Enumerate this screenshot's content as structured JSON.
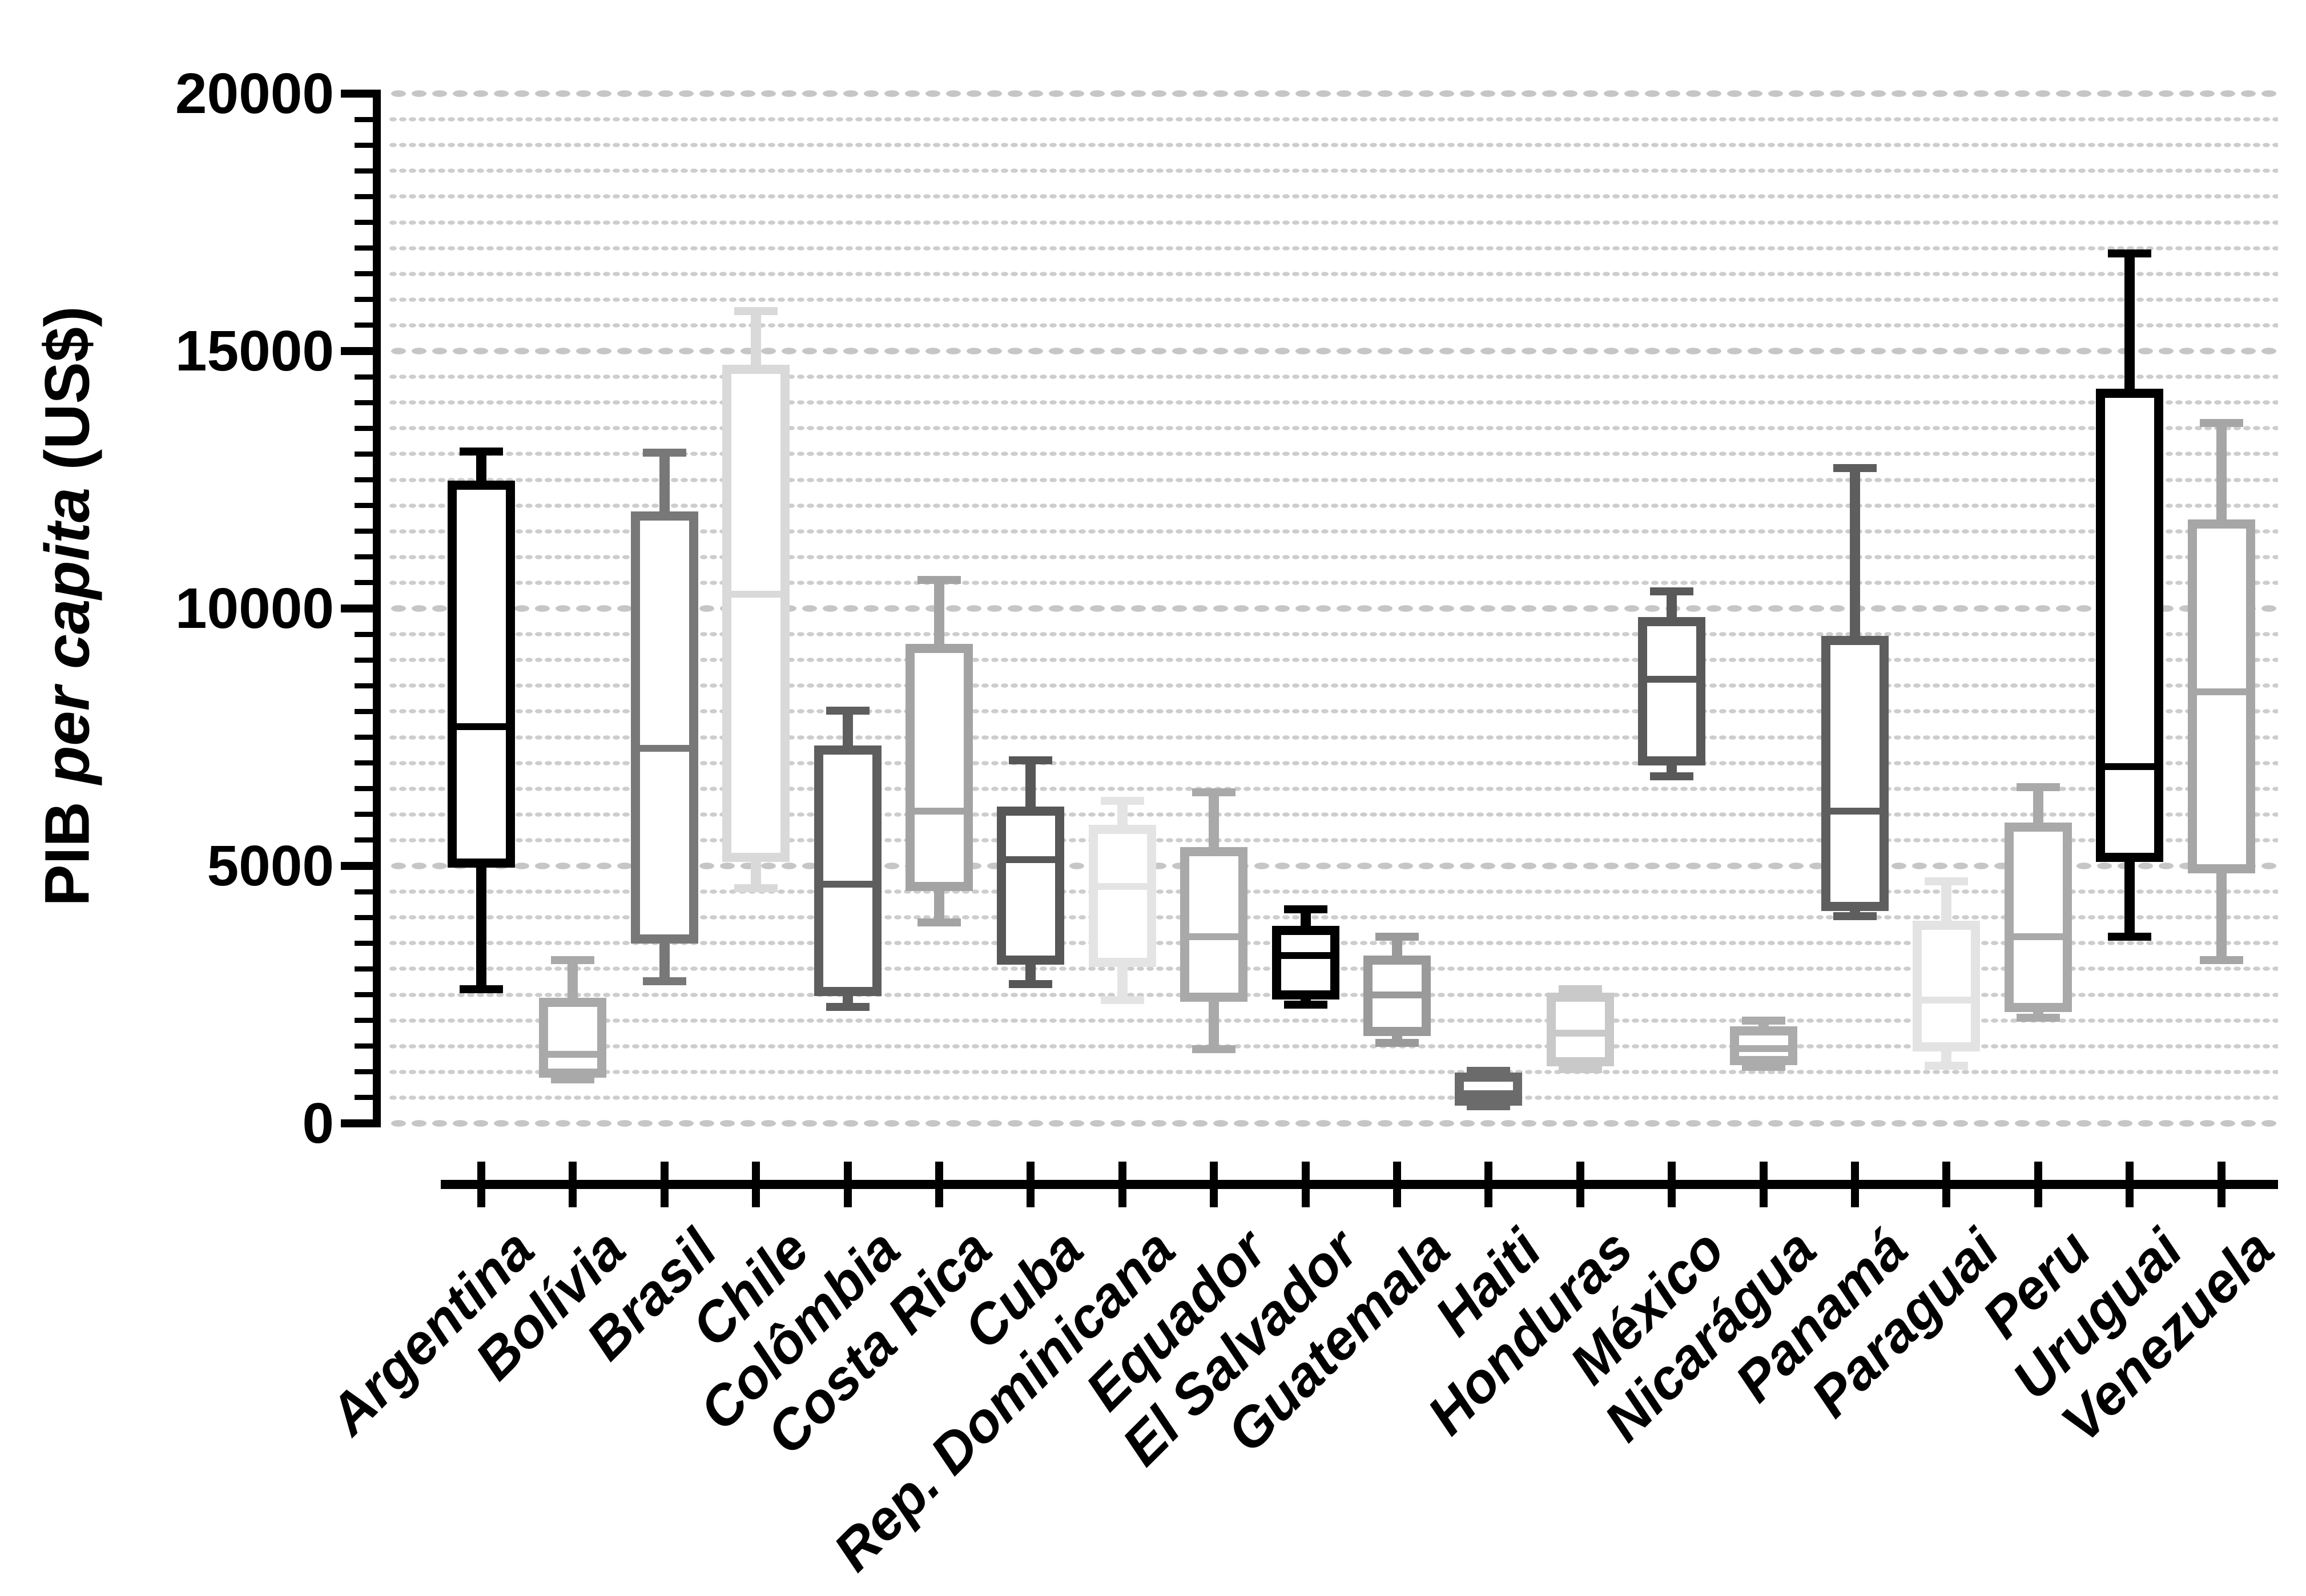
{
  "y_axis": {
    "title_prefix": "PIB ",
    "title_italic": "per capita",
    "title_suffix": " (US$)",
    "tick_labels": [
      "0",
      "5000",
      "10000",
      "15000",
      "20000"
    ]
  },
  "chart_data": {
    "type": "box",
    "title": "",
    "xlabel": "",
    "ylabel": "PIB per capita (US$)",
    "ylim": [
      0,
      20000
    ],
    "ytick_interval": 5000,
    "minor_tick_interval": 500,
    "grid": "dotted horizontal, minor every 500, emphasized every 5000",
    "grid_dot_color": "#cccccc",
    "axis_color": "#000000",
    "legend": "none",
    "categories": [
      "Argentina",
      "Bolívia",
      "Brasil",
      "Chile",
      "Colômbia",
      "Costa Rica",
      "Cuba",
      "Rep. Dominicana",
      "Equador",
      "El Salvador",
      "Guatemala",
      "Haiti",
      "Honduras",
      "México",
      "Nicarágua",
      "Panamá",
      "Paraguai",
      "Peru",
      "Uruguai",
      "Venezuela"
    ],
    "series": [
      {
        "name": "Argentina",
        "color": "#000000",
        "min": 2600,
        "q1": 5050,
        "median": 7700,
        "q3": 12400,
        "max": 13050
      },
      {
        "name": "Bolívia",
        "color": "#a9a9a9",
        "min": 850,
        "q1": 970,
        "median": 1340,
        "q3": 2350,
        "max": 3170
      },
      {
        "name": "Brasil",
        "color": "#787878",
        "min": 2760,
        "q1": 3580,
        "median": 7280,
        "q3": 11800,
        "max": 13030
      },
      {
        "name": "Chile",
        "color": "#d9d9d9",
        "min": 4570,
        "q1": 5170,
        "median": 10280,
        "q3": 14650,
        "max": 15780
      },
      {
        "name": "Colômbia",
        "color": "#5e5e5e",
        "min": 2260,
        "q1": 2560,
        "median": 4650,
        "q3": 7250,
        "max": 8020
      },
      {
        "name": "Costa Rica",
        "color": "#a3a3a3",
        "min": 3900,
        "q1": 4600,
        "median": 6060,
        "q3": 9220,
        "max": 10550
      },
      {
        "name": "Cuba",
        "color": "#575757",
        "min": 2700,
        "q1": 3170,
        "median": 5120,
        "q3": 6060,
        "max": 7050
      },
      {
        "name": "Rep. Dominicana",
        "color": "#e4e4e4",
        "min": 2400,
        "q1": 3130,
        "median": 4600,
        "q3": 5710,
        "max": 6260
      },
      {
        "name": "Equador",
        "color": "#a9a9a9",
        "min": 1440,
        "q1": 2450,
        "median": 3620,
        "q3": 5280,
        "max": 6430
      },
      {
        "name": "El Salvador",
        "color": "#000000",
        "min": 2310,
        "q1": 2490,
        "median": 3260,
        "q3": 3750,
        "max": 4160
      },
      {
        "name": "Guatemala",
        "color": "#9a9a9a",
        "min": 1560,
        "q1": 1780,
        "median": 2490,
        "q3": 3170,
        "max": 3620
      },
      {
        "name": "Haiti",
        "color": "#6b6b6b",
        "min": 330,
        "q1": 430,
        "median": 580,
        "q3": 900,
        "max": 1020
      },
      {
        "name": "Honduras",
        "color": "#c9c9c9",
        "min": 1050,
        "q1": 1200,
        "median": 1750,
        "q3": 2450,
        "max": 2600
      },
      {
        "name": "México",
        "color": "#595959",
        "min": 6740,
        "q1": 7040,
        "median": 8630,
        "q3": 9740,
        "max": 10330
      },
      {
        "name": "Nicarágua",
        "color": "#ababab",
        "min": 1100,
        "q1": 1220,
        "median": 1450,
        "q3": 1800,
        "max": 2000
      },
      {
        "name": "Panamá",
        "color": "#5e5e5e",
        "min": 4020,
        "q1": 4210,
        "median": 6060,
        "q3": 9380,
        "max": 12730
      },
      {
        "name": "Paraguai",
        "color": "#e3e3e3",
        "min": 1120,
        "q1": 1480,
        "median": 2390,
        "q3": 3850,
        "max": 4700
      },
      {
        "name": "Peru",
        "color": "#a9a9a9",
        "min": 2050,
        "q1": 2250,
        "median": 3620,
        "q3": 5750,
        "max": 6530
      },
      {
        "name": "Uruguai",
        "color": "#000000",
        "min": 3620,
        "q1": 5170,
        "median": 6930,
        "q3": 14180,
        "max": 16900
      },
      {
        "name": "Venezuela",
        "color": "#a6a6a6",
        "min": 3170,
        "q1": 4940,
        "median": 8380,
        "q3": 11640,
        "max": 13600
      }
    ]
  }
}
